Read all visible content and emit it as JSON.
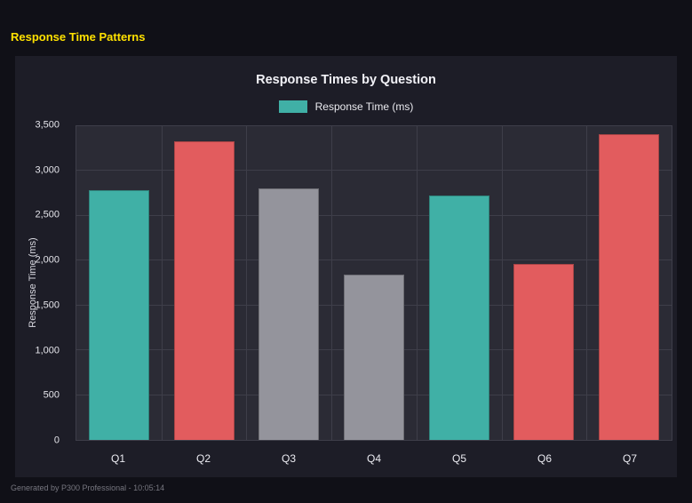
{
  "header": {
    "title": "Response Time Patterns"
  },
  "footer": {
    "text": "Generated by P300 Professional - 10:05:14"
  },
  "colors": {
    "page_background": "#101017",
    "card_background": "#1d1d27",
    "plot_background": "#2b2b35",
    "header_yellow": "#ffe100",
    "teal": "#40b0a6",
    "red": "#e25c5e",
    "gray": "#94949c"
  },
  "chart_data": {
    "type": "bar",
    "title": "Response Times by Question",
    "legend": [
      {
        "label": "Response Time (ms)",
        "color": "#40b0a6"
      }
    ],
    "legend_position": "top",
    "categories": [
      "Q1",
      "Q2",
      "Q3",
      "Q4",
      "Q5",
      "Q6",
      "Q7"
    ],
    "values": [
      2790,
      3330,
      2810,
      1845,
      2730,
      1960,
      3410
    ],
    "bar_colors": [
      "#40b0a6",
      "#e25c5e",
      "#94949c",
      "#94949c",
      "#40b0a6",
      "#e25c5e",
      "#e25c5e"
    ],
    "xlabel": "",
    "ylabel": "Response Time (ms)",
    "ylim": [
      0,
      3500
    ],
    "yticks": [
      0,
      500,
      1000,
      1500,
      2000,
      2500,
      3000,
      3500
    ],
    "ytick_labels": [
      "0",
      "500",
      "1,000",
      "1,500",
      "2,000",
      "2,500",
      "3,000",
      "3,500"
    ],
    "grid": true
  }
}
